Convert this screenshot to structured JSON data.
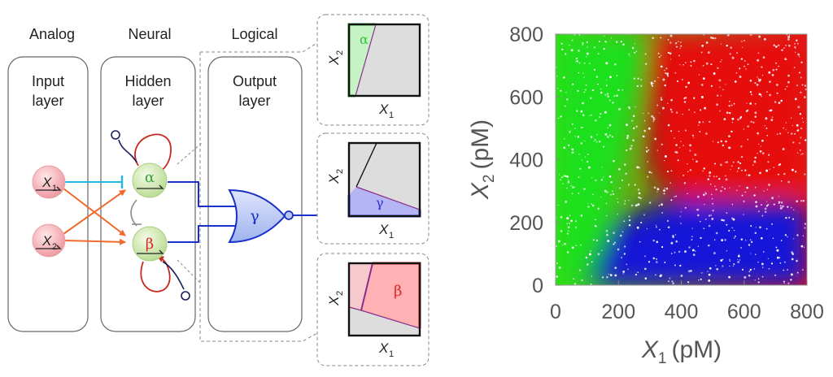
{
  "diagram": {
    "column_titles": {
      "analog": "Analog",
      "neural": "Neural",
      "logical": "Logical"
    },
    "input_layer": {
      "line1": "Input",
      "line2": "layer"
    },
    "hidden_layer": {
      "line1": "Hidden",
      "line2": "layer"
    },
    "output_layer": {
      "line1": "Output",
      "line2": "layer"
    },
    "nodes": {
      "x1": {
        "var": "X",
        "sub": "1"
      },
      "x2": {
        "var": "X",
        "sub": "2"
      },
      "alpha": "α",
      "beta": "β",
      "gamma": "γ"
    },
    "panels": [
      {
        "region": "α",
        "xlabel_var": "X",
        "xlabel_sub": "1",
        "ylabel_var": "X",
        "ylabel_sub": "2",
        "color": "#34c234"
      },
      {
        "region": "γ",
        "xlabel_var": "X",
        "xlabel_sub": "1",
        "ylabel_var": "X",
        "ylabel_sub": "2",
        "color": "#3535d6"
      },
      {
        "region": "β",
        "xlabel_var": "X",
        "xlabel_sub": "1",
        "ylabel_var": "X",
        "ylabel_sub": "2",
        "color": "#e02525"
      }
    ],
    "colors": {
      "input_node": "#f2b8bd",
      "hidden_node": "#cfe6b0",
      "inhibit_line": "#22b5e8",
      "cross_arrow": "#ef6a2c",
      "self_loop": "#c8281e",
      "gate_fill": "#b9c8f2",
      "gate_stroke": "#1b2fc9",
      "ghost": "#8c8c8c"
    }
  },
  "chart_data": {
    "type": "scatter",
    "title": "",
    "xlabel_var": "X",
    "xlabel_sub": "1",
    "xlabel_unit": "(pM)",
    "ylabel_var": "X",
    "ylabel_sub": "2",
    "ylabel_unit": "(pM)",
    "xlim": [
      0,
      800
    ],
    "ylim": [
      0,
      800
    ],
    "xticks": [
      0,
      200,
      400,
      600,
      800
    ],
    "yticks": [
      0,
      200,
      400,
      600,
      800
    ],
    "grid": false,
    "regions": [
      {
        "name": "α",
        "color": "#1fe01f",
        "description_points": [
          [
            0,
            800
          ],
          [
            300,
            800
          ],
          [
            130,
            0
          ],
          [
            0,
            0
          ]
        ]
      },
      {
        "name": "β",
        "color": "#e61010",
        "description_points": [
          [
            300,
            800
          ],
          [
            800,
            800
          ],
          [
            800,
            300
          ],
          [
            380,
            270
          ],
          [
            300,
            380
          ]
        ]
      },
      {
        "name": "γ",
        "color": "#1414d8",
        "description_points": [
          [
            110,
            0
          ],
          [
            800,
            0
          ],
          [
            800,
            260
          ],
          [
            380,
            270
          ],
          [
            200,
            200
          ]
        ]
      }
    ]
  }
}
